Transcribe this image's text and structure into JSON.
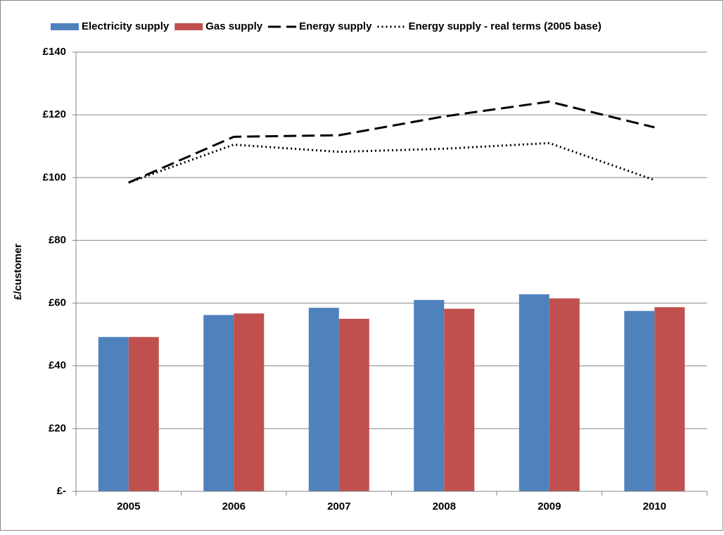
{
  "chart_data": {
    "type": "bar",
    "y_label": "£/customer",
    "categories": [
      "2005",
      "2006",
      "2007",
      "2008",
      "2009",
      "2010"
    ],
    "series": [
      {
        "name": "Electricity supply",
        "color": "#4f81bd",
        "type": "bar",
        "values": [
          49.2,
          56.2,
          58.5,
          61,
          62.8,
          57.5
        ]
      },
      {
        "name": "Gas supply",
        "color": "#c0504d",
        "type": "bar",
        "values": [
          49.2,
          56.7,
          55,
          58.2,
          61.5,
          58.7
        ]
      },
      {
        "name": "Energy supply",
        "color": "#000000",
        "type": "line",
        "dash": "dashed",
        "values": [
          98.4,
          113,
          113.5,
          119.5,
          124.2,
          116
        ]
      },
      {
        "name": "Energy supply - real terms (2005 base)",
        "color": "#000000",
        "type": "line",
        "dash": "dotted",
        "values": [
          98.4,
          110.5,
          108.2,
          109.2,
          111,
          99.2
        ]
      }
    ],
    "ylim": [
      0,
      140
    ],
    "yticks": [
      {
        "value": 0,
        "label": "£-"
      },
      {
        "value": 20,
        "label": "£20"
      },
      {
        "value": 40,
        "label": "£40"
      },
      {
        "value": 60,
        "label": "£60"
      },
      {
        "value": 80,
        "label": "£80"
      },
      {
        "value": 100,
        "label": "£100"
      },
      {
        "value": 120,
        "label": "£120"
      },
      {
        "value": 140,
        "label": "£140"
      }
    ],
    "grid": true,
    "legend": "top"
  }
}
